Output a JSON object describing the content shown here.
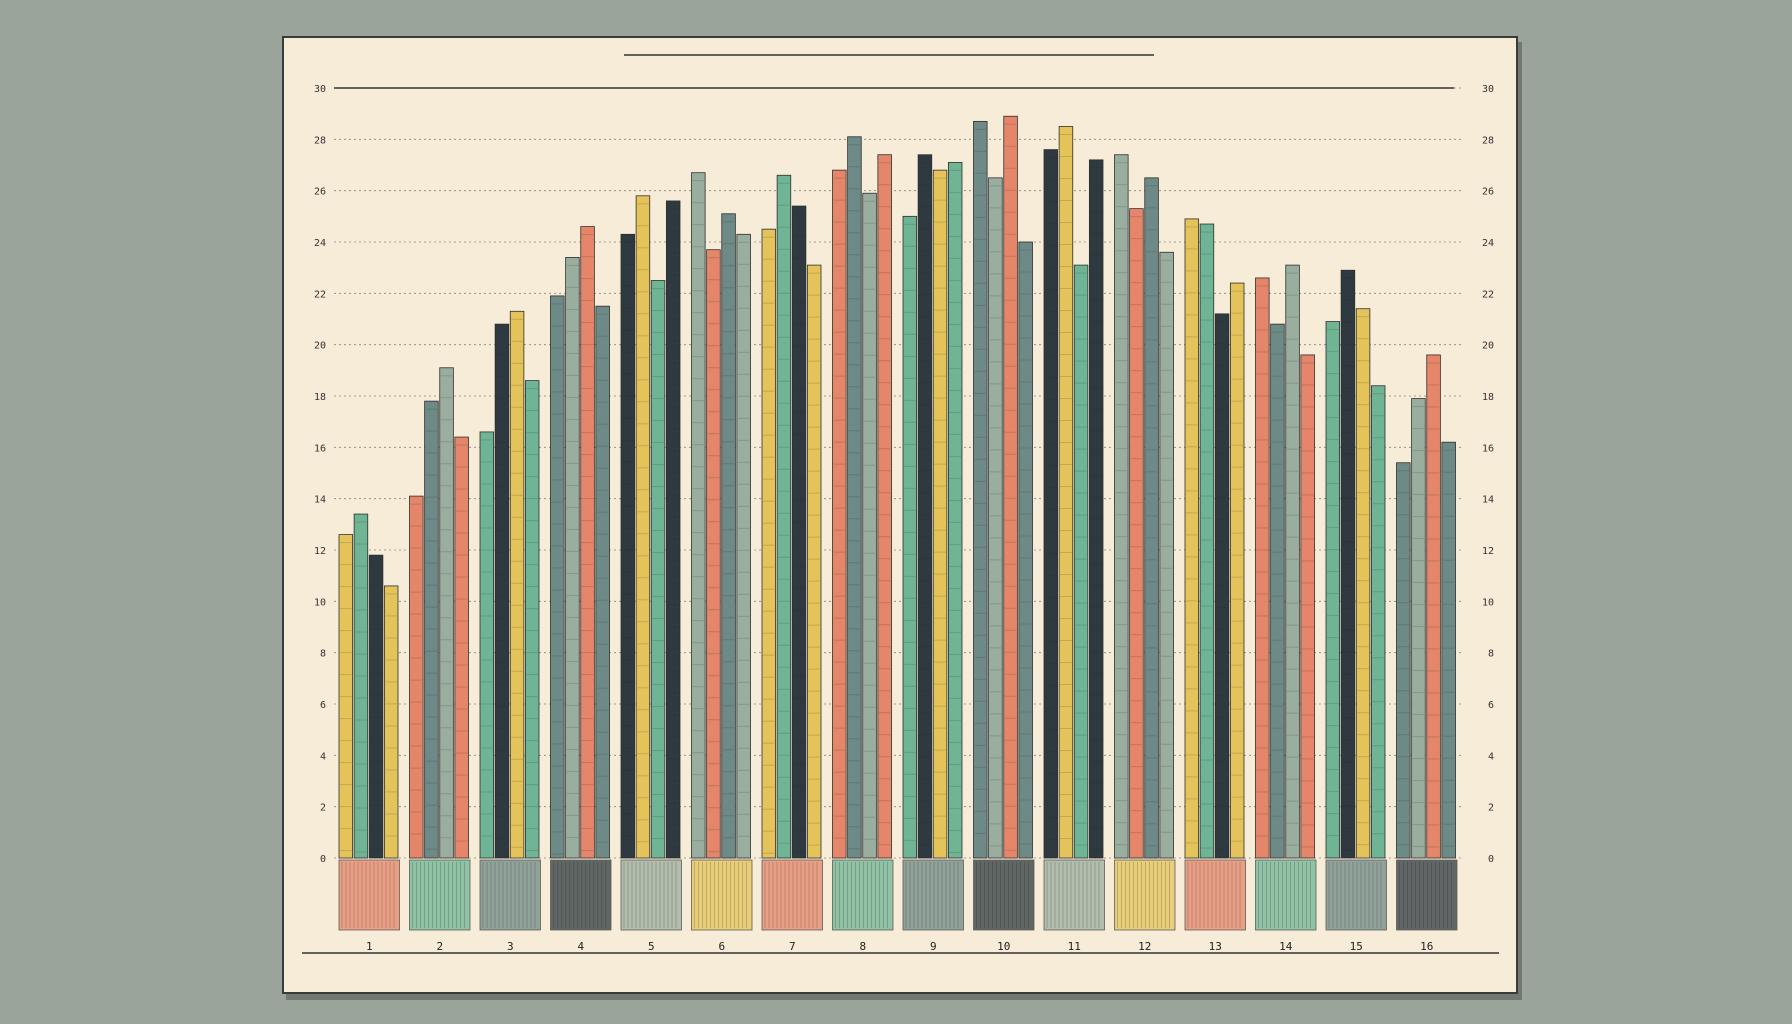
{
  "chart_data": {
    "type": "bar",
    "title": "",
    "xlabel": "",
    "ylabel": "",
    "ylim": [
      0,
      30
    ],
    "grid": true,
    "y_ticks": [
      0,
      2,
      4,
      6,
      8,
      10,
      12,
      14,
      16,
      18,
      20,
      22,
      24,
      26,
      28,
      30
    ],
    "categories": [
      "1",
      "2",
      "3",
      "4",
      "5",
      "6",
      "7",
      "8",
      "9",
      "10",
      "11",
      "12",
      "13",
      "14",
      "15",
      "16"
    ],
    "series": [
      {
        "values": [
          12.6,
          14.1,
          16.6,
          21.9,
          24.3,
          26.7,
          24.5,
          26.8,
          25.0,
          28.7,
          27.6,
          27.4,
          24.9,
          22.6,
          20.9,
          15.4
        ]
      },
      {
        "values": [
          13.4,
          17.8,
          20.8,
          23.4,
          25.8,
          23.7,
          26.6,
          28.1,
          27.4,
          26.5,
          28.5,
          25.3,
          24.7,
          20.8,
          22.9,
          17.9
        ]
      },
      {
        "values": [
          11.8,
          19.1,
          21.3,
          24.6,
          22.5,
          25.1,
          25.4,
          25.9,
          26.8,
          28.9,
          23.1,
          26.5,
          21.2,
          23.1,
          21.4,
          19.6
        ]
      },
      {
        "values": [
          10.6,
          16.4,
          18.6,
          21.5,
          25.6,
          24.3,
          23.1,
          27.4,
          27.1,
          24.0,
          27.2,
          23.6,
          22.4,
          19.6,
          18.4,
          16.2
        ]
      }
    ],
    "colors": [
      "#e4c45a",
      "#e5866a",
      "#6fb595",
      "#6e8a86",
      "#2e3a40",
      "#9aaea0"
    ]
  }
}
